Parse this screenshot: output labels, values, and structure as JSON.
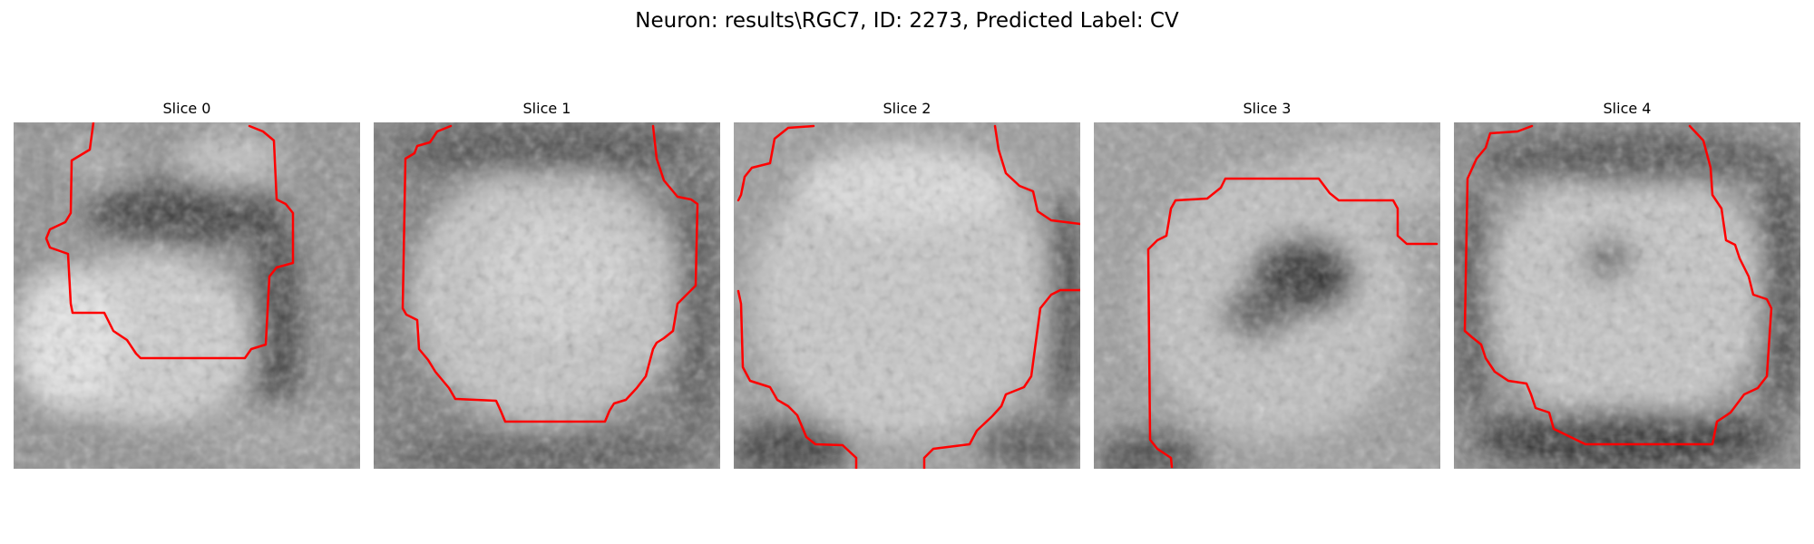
{
  "figure": {
    "title": "Neuron: results\\RGC7, ID: 2273, Predicted Label: CV"
  },
  "slices": [
    {
      "title": "Slice 0"
    },
    {
      "title": "Slice 1"
    },
    {
      "title": "Slice 2"
    },
    {
      "title": "Slice 3"
    },
    {
      "title": "Slice 4"
    }
  ],
  "colors": {
    "background": "#ffffff",
    "contour": "#ff0000",
    "image_colormap": "gray"
  }
}
